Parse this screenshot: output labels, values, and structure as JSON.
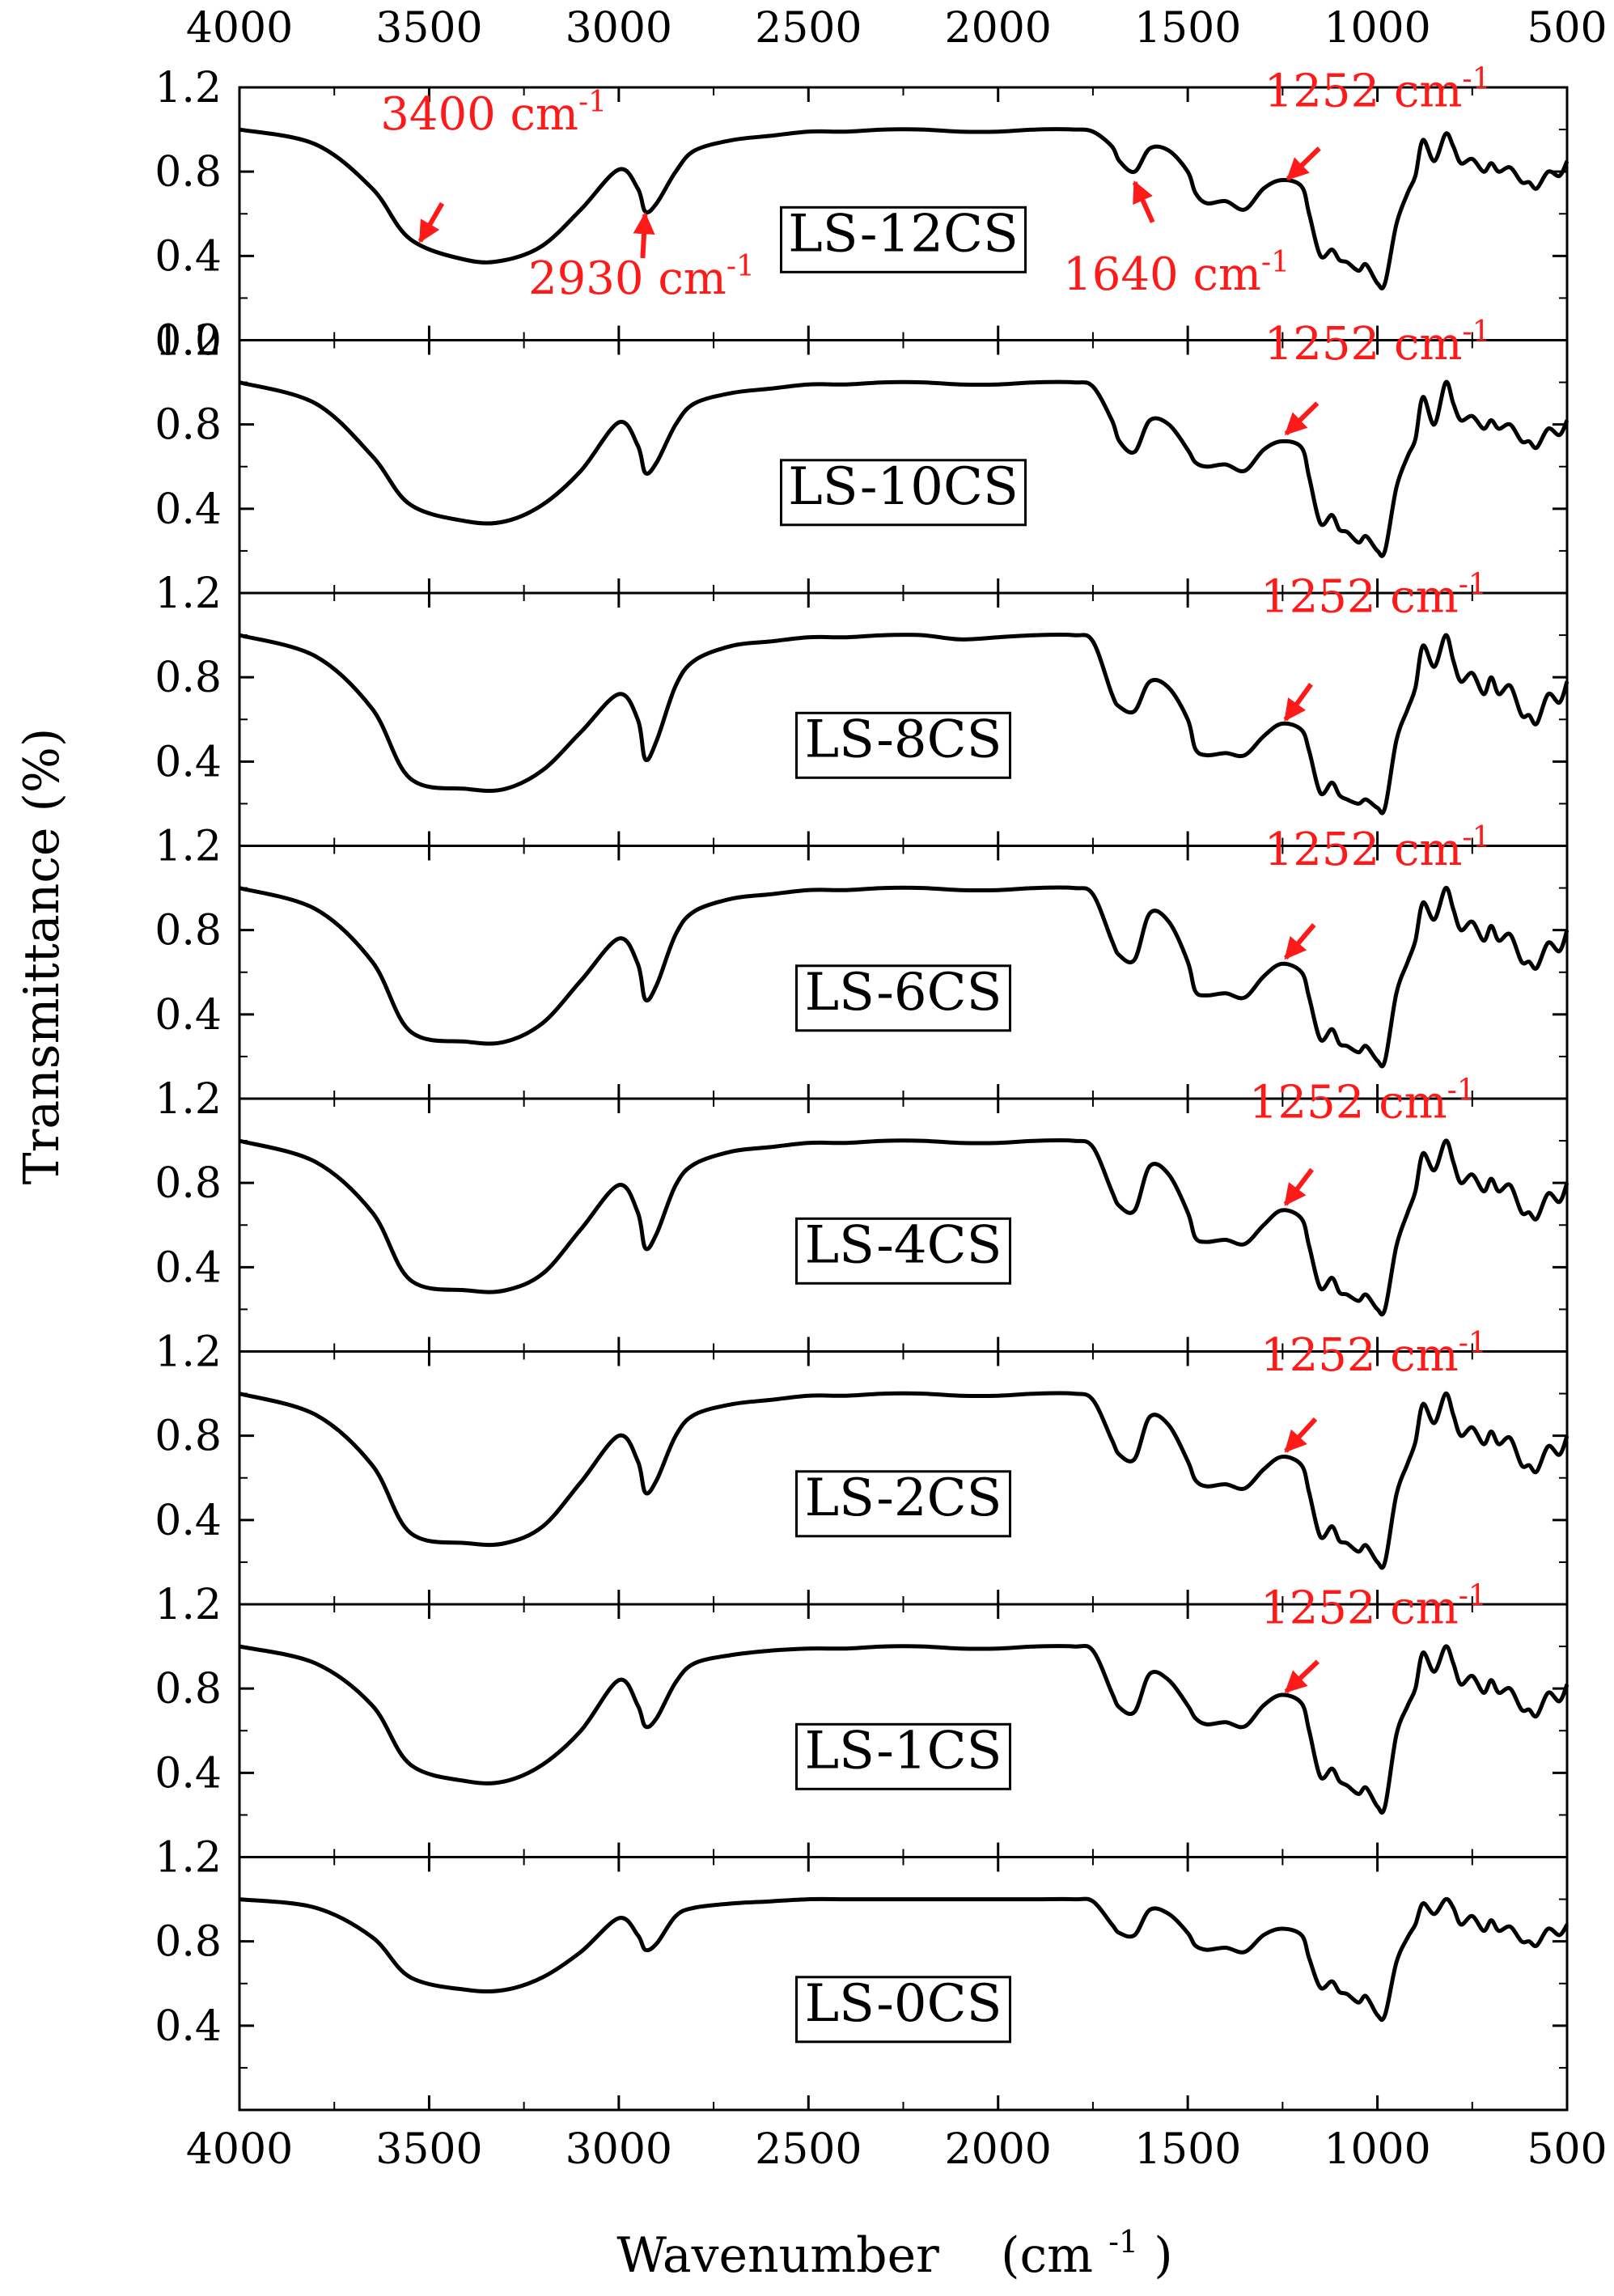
{
  "chart_data": {
    "type": "line",
    "title": "",
    "xlabel": "Wavenumber",
    "xlabel_unit": "(cm",
    "xlabel_unit_sup": "-1",
    "xlabel_unit_close": ")",
    "ylabel": "Transmittance  (%)",
    "xlim": [
      4000,
      500
    ],
    "x_reversed": true,
    "ylim": [
      0,
      1.2
    ],
    "grid": false,
    "x_ticks": [
      4000,
      3500,
      3000,
      2500,
      2000,
      1500,
      1000,
      500
    ],
    "x_tick_labels": [
      "4000",
      "3500",
      "3000",
      "2500",
      "2000",
      "1500",
      "1000",
      "500"
    ],
    "y_tick_labels": [
      "0.0",
      "0.4",
      "0.8",
      "1.2"
    ],
    "anchor_x": [
      4000,
      3800,
      3650,
      3550,
      3400,
      3300,
      3200,
      3100,
      3000,
      2950,
      2930,
      2900,
      2850,
      2800,
      2700,
      2600,
      2500,
      2400,
      2300,
      2200,
      2100,
      2000,
      1900,
      1800,
      1750,
      1700,
      1680,
      1640,
      1600,
      1550,
      1500,
      1480,
      1450,
      1400,
      1350,
      1300,
      1252,
      1200,
      1180,
      1150,
      1120,
      1100,
      1080,
      1050,
      1030,
      1000,
      980,
      950,
      920,
      900,
      880,
      850,
      820,
      800,
      780,
      750,
      720,
      700,
      680,
      650,
      620,
      600,
      580,
      550,
      520,
      500
    ],
    "series": [
      {
        "name": "LS-12CS",
        "values": [
          1.0,
          0.93,
          0.72,
          0.48,
          0.38,
          0.38,
          0.45,
          0.62,
          0.81,
          0.72,
          0.61,
          0.65,
          0.8,
          0.9,
          0.95,
          0.97,
          0.99,
          0.99,
          1.0,
          1.0,
          0.99,
          0.99,
          1.0,
          1.0,
          0.99,
          0.92,
          0.85,
          0.8,
          0.91,
          0.9,
          0.8,
          0.7,
          0.65,
          0.66,
          0.62,
          0.72,
          0.76,
          0.73,
          0.6,
          0.4,
          0.43,
          0.38,
          0.37,
          0.33,
          0.36,
          0.27,
          0.27,
          0.55,
          0.7,
          0.78,
          0.95,
          0.85,
          0.98,
          0.92,
          0.84,
          0.86,
          0.8,
          0.84,
          0.8,
          0.82,
          0.75,
          0.75,
          0.72,
          0.8,
          0.78,
          0.85
        ]
      },
      {
        "name": "LS-10CS",
        "values": [
          1.0,
          0.9,
          0.65,
          0.42,
          0.34,
          0.34,
          0.42,
          0.58,
          0.81,
          0.7,
          0.57,
          0.62,
          0.8,
          0.9,
          0.95,
          0.97,
          0.99,
          0.99,
          1.0,
          1.0,
          0.99,
          0.99,
          1.0,
          1.0,
          0.98,
          0.82,
          0.72,
          0.67,
          0.82,
          0.8,
          0.68,
          0.62,
          0.6,
          0.61,
          0.58,
          0.68,
          0.72,
          0.69,
          0.55,
          0.33,
          0.37,
          0.3,
          0.29,
          0.24,
          0.27,
          0.2,
          0.2,
          0.5,
          0.65,
          0.73,
          0.93,
          0.8,
          1.0,
          0.9,
          0.82,
          0.84,
          0.78,
          0.82,
          0.78,
          0.8,
          0.72,
          0.72,
          0.69,
          0.78,
          0.75,
          0.82
        ]
      },
      {
        "name": "LS-8CS",
        "values": [
          1.0,
          0.9,
          0.65,
          0.32,
          0.27,
          0.27,
          0.36,
          0.54,
          0.72,
          0.6,
          0.41,
          0.5,
          0.76,
          0.88,
          0.95,
          0.97,
          0.99,
          0.99,
          1.0,
          1.0,
          0.98,
          0.99,
          1.0,
          1.0,
          0.97,
          0.72,
          0.66,
          0.64,
          0.78,
          0.75,
          0.6,
          0.46,
          0.43,
          0.44,
          0.43,
          0.52,
          0.58,
          0.55,
          0.45,
          0.25,
          0.3,
          0.24,
          0.22,
          0.2,
          0.22,
          0.18,
          0.18,
          0.5,
          0.65,
          0.75,
          0.95,
          0.85,
          1.0,
          0.88,
          0.78,
          0.82,
          0.72,
          0.8,
          0.72,
          0.76,
          0.62,
          0.62,
          0.58,
          0.72,
          0.68,
          0.78
        ]
      },
      {
        "name": "LS-6CS",
        "values": [
          1.0,
          0.9,
          0.65,
          0.32,
          0.27,
          0.27,
          0.36,
          0.56,
          0.76,
          0.64,
          0.47,
          0.54,
          0.78,
          0.89,
          0.95,
          0.97,
          0.99,
          0.99,
          1.0,
          1.0,
          0.99,
          0.99,
          1.0,
          1.0,
          0.97,
          0.75,
          0.68,
          0.66,
          0.88,
          0.84,
          0.65,
          0.51,
          0.49,
          0.5,
          0.48,
          0.58,
          0.64,
          0.6,
          0.48,
          0.28,
          0.33,
          0.26,
          0.25,
          0.22,
          0.25,
          0.18,
          0.18,
          0.5,
          0.65,
          0.75,
          0.93,
          0.85,
          1.0,
          0.9,
          0.8,
          0.84,
          0.75,
          0.82,
          0.75,
          0.78,
          0.65,
          0.65,
          0.62,
          0.74,
          0.7,
          0.8
        ]
      },
      {
        "name": "LS-4CS",
        "values": [
          1.0,
          0.9,
          0.66,
          0.34,
          0.29,
          0.29,
          0.37,
          0.58,
          0.79,
          0.66,
          0.49,
          0.56,
          0.79,
          0.89,
          0.95,
          0.97,
          0.99,
          0.99,
          1.0,
          1.0,
          0.99,
          0.99,
          1.0,
          1.0,
          0.97,
          0.76,
          0.69,
          0.67,
          0.88,
          0.84,
          0.66,
          0.54,
          0.52,
          0.53,
          0.51,
          0.6,
          0.67,
          0.63,
          0.5,
          0.3,
          0.35,
          0.28,
          0.27,
          0.24,
          0.27,
          0.2,
          0.2,
          0.5,
          0.66,
          0.76,
          0.94,
          0.86,
          1.0,
          0.9,
          0.8,
          0.84,
          0.76,
          0.82,
          0.76,
          0.79,
          0.66,
          0.66,
          0.63,
          0.75,
          0.71,
          0.8
        ]
      },
      {
        "name": "LS-2CS",
        "values": [
          1.0,
          0.9,
          0.66,
          0.34,
          0.29,
          0.29,
          0.37,
          0.58,
          0.8,
          0.68,
          0.53,
          0.59,
          0.8,
          0.9,
          0.95,
          0.97,
          0.99,
          0.99,
          1.0,
          1.0,
          0.99,
          0.99,
          1.0,
          1.0,
          0.97,
          0.78,
          0.71,
          0.69,
          0.89,
          0.85,
          0.68,
          0.59,
          0.56,
          0.57,
          0.55,
          0.64,
          0.7,
          0.66,
          0.53,
          0.32,
          0.37,
          0.3,
          0.29,
          0.25,
          0.28,
          0.2,
          0.2,
          0.52,
          0.67,
          0.77,
          0.95,
          0.86,
          1.0,
          0.9,
          0.8,
          0.84,
          0.76,
          0.82,
          0.76,
          0.79,
          0.66,
          0.66,
          0.63,
          0.75,
          0.71,
          0.8
        ]
      },
      {
        "name": "LS-1CS",
        "values": [
          1.0,
          0.92,
          0.72,
          0.44,
          0.36,
          0.36,
          0.44,
          0.6,
          0.84,
          0.72,
          0.62,
          0.66,
          0.83,
          0.92,
          0.96,
          0.98,
          0.99,
          0.99,
          1.0,
          1.0,
          0.99,
          0.99,
          1.0,
          1.0,
          0.98,
          0.78,
          0.71,
          0.69,
          0.87,
          0.84,
          0.72,
          0.66,
          0.63,
          0.64,
          0.62,
          0.72,
          0.77,
          0.73,
          0.6,
          0.38,
          0.42,
          0.36,
          0.34,
          0.3,
          0.33,
          0.24,
          0.24,
          0.58,
          0.72,
          0.8,
          0.97,
          0.88,
          1.0,
          0.92,
          0.82,
          0.86,
          0.78,
          0.84,
          0.78,
          0.8,
          0.7,
          0.7,
          0.67,
          0.78,
          0.74,
          0.82
        ]
      },
      {
        "name": "LS-0CS",
        "values": [
          1.0,
          0.96,
          0.82,
          0.63,
          0.57,
          0.57,
          0.63,
          0.75,
          0.91,
          0.83,
          0.76,
          0.79,
          0.92,
          0.96,
          0.98,
          0.99,
          1.0,
          1.0,
          1.0,
          1.0,
          1.0,
          1.0,
          1.0,
          1.0,
          0.99,
          0.88,
          0.84,
          0.83,
          0.95,
          0.93,
          0.84,
          0.78,
          0.76,
          0.77,
          0.75,
          0.83,
          0.86,
          0.83,
          0.72,
          0.58,
          0.61,
          0.56,
          0.55,
          0.51,
          0.54,
          0.45,
          0.45,
          0.7,
          0.82,
          0.88,
          0.98,
          0.93,
          1.0,
          0.96,
          0.88,
          0.92,
          0.85,
          0.9,
          0.85,
          0.87,
          0.8,
          0.8,
          0.78,
          0.86,
          0.83,
          0.88
        ]
      }
    ],
    "annotations": [
      {
        "panel": 0,
        "value": "3400",
        "unit": "cm",
        "sup": "-1",
        "target_x": 3530,
        "target_y": 0.45,
        "text_x": 3330,
        "text_y": 1.0,
        "text_anchor": "middle"
      },
      {
        "panel": 0,
        "value": "2930",
        "unit": "cm",
        "sup": "-1",
        "target_x": 2930,
        "target_y": 0.62,
        "text_x": 2940,
        "text_y": 0.22,
        "text_anchor": "middle"
      },
      {
        "panel": 0,
        "value": "1640",
        "unit": "cm",
        "sup": "-1",
        "target_x": 1645,
        "target_y": 0.77,
        "text_x": 1530,
        "text_y": 0.24,
        "text_anchor": "middle"
      },
      {
        "panel": 0,
        "value": "1252",
        "unit": "cm",
        "sup": "-1",
        "target_x": 1245,
        "target_y": 0.75,
        "text_x": 1000,
        "text_y": 1.11,
        "text_anchor": "middle"
      },
      {
        "panel": 1,
        "value": "1252",
        "unit": "cm",
        "sup": "-1",
        "target_x": 1250,
        "target_y": 0.74,
        "text_x": 1000,
        "text_y": 1.11,
        "text_anchor": "middle"
      },
      {
        "panel": 2,
        "value": "1252",
        "unit": "cm",
        "sup": "-1",
        "target_x": 1250,
        "target_y": 0.58,
        "text_x": 1010,
        "text_y": 1.11,
        "text_anchor": "middle"
      },
      {
        "panel": 3,
        "value": "1252",
        "unit": "cm",
        "sup": "-1",
        "target_x": 1250,
        "target_y": 0.65,
        "text_x": 1000,
        "text_y": 1.11,
        "text_anchor": "middle"
      },
      {
        "panel": 4,
        "value": "1252",
        "unit": "cm",
        "sup": "-1",
        "target_x": 1250,
        "target_y": 0.68,
        "text_x": 1040,
        "text_y": 1.11,
        "text_anchor": "middle"
      },
      {
        "panel": 5,
        "value": "1252",
        "unit": "cm",
        "sup": "-1",
        "target_x": 1250,
        "target_y": 0.71,
        "text_x": 1010,
        "text_y": 1.11,
        "text_anchor": "middle"
      },
      {
        "panel": 6,
        "value": "1252",
        "unit": "cm",
        "sup": "-1",
        "target_x": 1250,
        "target_y": 0.77,
        "text_x": 1010,
        "text_y": 1.11,
        "text_anchor": "middle"
      }
    ],
    "colors": {
      "line": "#000000",
      "annotation": "#ff1a1a",
      "axis": "#000000"
    }
  }
}
